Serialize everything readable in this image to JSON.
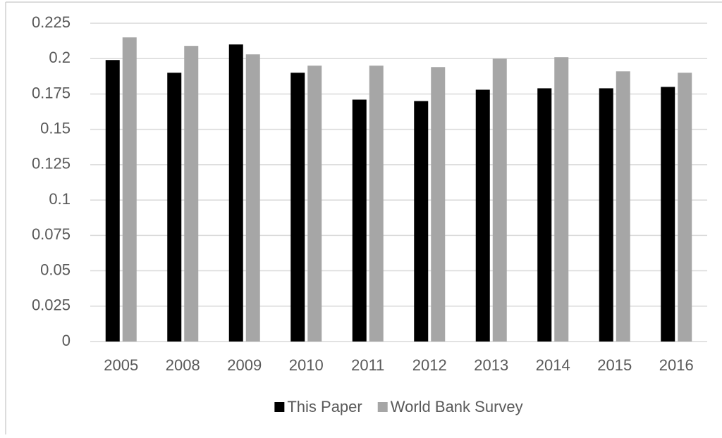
{
  "chart_data": {
    "type": "bar",
    "categories": [
      "2005",
      "2008",
      "2009",
      "2010",
      "2011",
      "2012",
      "2013",
      "2014",
      "2015",
      "2016"
    ],
    "series": [
      {
        "name": "This Paper",
        "color": "#000000",
        "values": [
          0.199,
          0.19,
          0.21,
          0.19,
          0.171,
          0.17,
          0.178,
          0.179,
          0.179,
          0.18
        ]
      },
      {
        "name": "World Bank Survey",
        "color": "#a6a6a6",
        "values": [
          0.215,
          0.209,
          0.203,
          0.195,
          0.195,
          0.194,
          0.2,
          0.201,
          0.191,
          0.19
        ]
      }
    ],
    "ylim": [
      0,
      0.225
    ],
    "yticks": [
      0,
      0.025,
      0.05,
      0.075,
      0.1,
      0.125,
      0.15,
      0.175,
      0.2,
      0.225
    ],
    "grid": true,
    "legend": "bottom"
  }
}
